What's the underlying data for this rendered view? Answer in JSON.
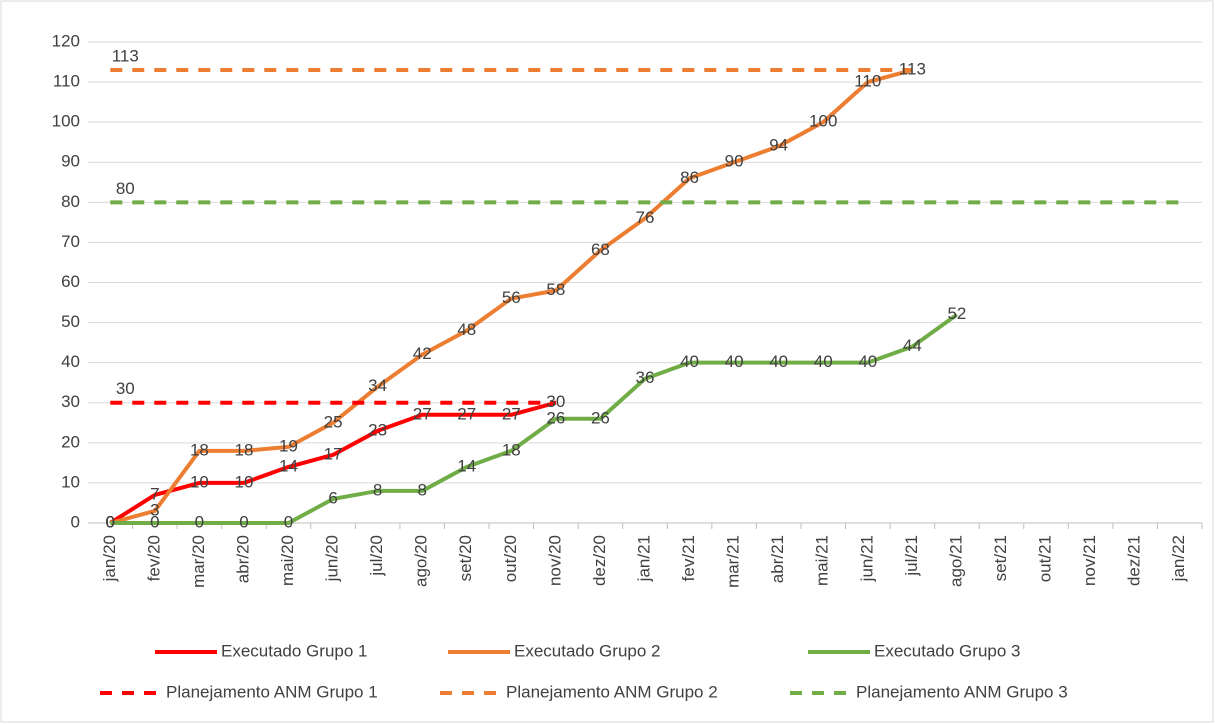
{
  "chart_data": {
    "type": "line",
    "categories": [
      "jan/20",
      "fev/20",
      "mar/20",
      "abr/20",
      "mai/20",
      "jun/20",
      "jul/20",
      "ago/20",
      "set/20",
      "out/20",
      "nov/20",
      "dez/20",
      "jan/21",
      "fev/21",
      "mar/21",
      "abr/21",
      "mai/21",
      "jun/21",
      "jul/21",
      "ago/21",
      "set/21",
      "out/21",
      "nov/21",
      "dez/21",
      "jan/22"
    ],
    "ylim": [
      0,
      120
    ],
    "yticks": [
      0,
      10,
      20,
      30,
      40,
      50,
      60,
      70,
      80,
      90,
      100,
      110,
      120
    ],
    "grid": true,
    "legend": "bottom",
    "series": [
      {
        "name": "Executado Grupo 1",
        "color": "#ff0000",
        "dash": false,
        "labels": "all",
        "values": [
          0,
          7,
          10,
          10,
          14,
          17,
          23,
          27,
          27,
          27,
          30,
          null,
          null,
          null,
          null,
          null,
          null,
          null,
          null,
          null,
          null,
          null,
          null,
          null,
          null
        ]
      },
      {
        "name": "Executado Grupo 2",
        "color": "#ed7d31",
        "dash": false,
        "labels": "all",
        "values": [
          0,
          3,
          18,
          18,
          19,
          25,
          34,
          42,
          48,
          56,
          58,
          68,
          76,
          86,
          90,
          94,
          100,
          110,
          113,
          null,
          null,
          null,
          null,
          null,
          null
        ]
      },
      {
        "name": "Executado Grupo 3",
        "color": "#70ad47",
        "dash": false,
        "labels": "all",
        "values": [
          0,
          0,
          0,
          0,
          0,
          6,
          8,
          8,
          14,
          18,
          26,
          26,
          36,
          40,
          40,
          40,
          40,
          40,
          44,
          52,
          null,
          null,
          null,
          null,
          null
        ]
      },
      {
        "name": "Planejamento ANM Grupo 1",
        "color": "#ff0000",
        "dash": true,
        "labels": "first",
        "values": [
          30,
          30,
          30,
          30,
          30,
          30,
          30,
          30,
          30,
          30,
          30,
          null,
          null,
          null,
          null,
          null,
          null,
          null,
          null,
          null,
          null,
          null,
          null,
          null,
          null
        ]
      },
      {
        "name": "Planejamento ANM Grupo 2",
        "color": "#ed7d31",
        "dash": true,
        "labels": "first",
        "values": [
          113,
          113,
          113,
          113,
          113,
          113,
          113,
          113,
          113,
          113,
          113,
          113,
          113,
          113,
          113,
          113,
          113,
          113,
          113,
          null,
          null,
          null,
          null,
          null,
          null
        ]
      },
      {
        "name": "Planejamento ANM Grupo 3",
        "color": "#70ad47",
        "dash": true,
        "labels": "first",
        "values": [
          80,
          80,
          80,
          80,
          80,
          80,
          80,
          80,
          80,
          80,
          80,
          80,
          80,
          80,
          80,
          80,
          80,
          80,
          80,
          80,
          80,
          80,
          80,
          80,
          80
        ]
      }
    ]
  }
}
